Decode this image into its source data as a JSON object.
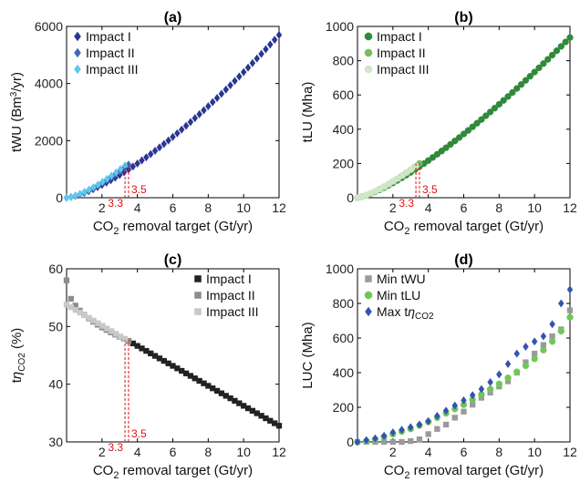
{
  "chart_data": [
    {
      "panel": "(a)",
      "type": "scatter",
      "title": "(a)",
      "xlabel": "CO2 removal target (Gt/yr)",
      "ylabel": "tWU (Bm3/yr)",
      "xlim": [
        0,
        12
      ],
      "ylim": [
        0,
        6000
      ],
      "xticks": [
        "2",
        "4",
        "6",
        "8",
        "10",
        "12"
      ],
      "yticks": [
        "0",
        "2000",
        "4000",
        "6000"
      ],
      "marker": "diamond",
      "legend": "top-left",
      "annotations": [
        {
          "text": "3.3",
          "x": 3.3
        },
        {
          "text": "3.5",
          "x": 3.5
        }
      ],
      "series": [
        {
          "name": "Impact I",
          "color": "#2b3592",
          "x_start": 0.0,
          "x_end": 12.0,
          "y_start": 0,
          "y_end": 5700,
          "exponent": 1.42
        },
        {
          "name": "Impact II",
          "color": "#3e66b6",
          "x_start": 0.0,
          "x_end": 3.5,
          "y_start": 0,
          "y_end": 1160,
          "exponent": 1.45
        },
        {
          "name": "Impact III",
          "color": "#5ec8f0",
          "x_start": 0.0,
          "x_end": 3.3,
          "y_start": 0,
          "y_end": 1130,
          "exponent": 1.45
        }
      ]
    },
    {
      "panel": "(b)",
      "type": "scatter",
      "title": "(b)",
      "xlabel": "CO2 removal target (Gt/yr)",
      "ylabel": "tLU (Mha)",
      "xlim": [
        0,
        12
      ],
      "ylim": [
        0,
        1000
      ],
      "xticks": [
        "2",
        "4",
        "6",
        "8",
        "10",
        "12"
      ],
      "yticks": [
        "0",
        "200",
        "400",
        "600",
        "800",
        "1000"
      ],
      "marker": "circle",
      "legend": "top-left",
      "annotations": [
        {
          "text": "3.3",
          "x": 3.3
        },
        {
          "text": "3.5",
          "x": 3.5
        }
      ],
      "series": [
        {
          "name": "Impact I",
          "color": "#2f8a3a",
          "x_start": 0.0,
          "x_end": 12.0,
          "y_start": 0,
          "y_end": 935,
          "exponent": 1.33
        },
        {
          "name": "Impact II",
          "color": "#74c05c",
          "x_start": 0.0,
          "x_end": 3.5,
          "y_start": 0,
          "y_end": 200,
          "exponent": 1.35
        },
        {
          "name": "Impact III",
          "color": "#cfe6c8",
          "x_start": 0.0,
          "x_end": 3.3,
          "y_start": 0,
          "y_end": 185,
          "exponent": 1.35
        }
      ]
    },
    {
      "panel": "(c)",
      "type": "scatter",
      "title": "(c)",
      "xlabel": "CO2 removal target (Gt/yr)",
      "ylabel": "tηCO2 (%)",
      "xlim": [
        0,
        12
      ],
      "ylim": [
        30,
        60
      ],
      "xticks": [
        "2",
        "4",
        "6",
        "8",
        "10",
        "12"
      ],
      "yticks": [
        "30",
        "40",
        "50",
        "60"
      ],
      "marker": "square",
      "legend": "top-right",
      "annotations": [
        {
          "text": "3.3",
          "x": 3.3
        },
        {
          "text": "3.5",
          "x": 3.5
        }
      ],
      "series": [
        {
          "name": "Impact I",
          "color": "#222222",
          "x_start": 3.5,
          "x_end": 12.0,
          "y_start": 47.5,
          "y_end": 32.8,
          "exponent": 1.0
        },
        {
          "name": "Impact II",
          "color": "#8c8c8c",
          "x_start": 0.0,
          "x_end": 3.5,
          "y_start": 58.0,
          "y_end": 47.5,
          "exponent": 0.45
        },
        {
          "name": "Impact III",
          "color": "#c8c8c8",
          "x_start": 0.0,
          "x_end": 3.3,
          "y_start": 53.8,
          "y_end": 47.8,
          "exponent": 1.0
        }
      ]
    },
    {
      "panel": "(d)",
      "type": "scatter",
      "title": "(d)",
      "xlabel": "CO2 removal target (Gt/yr)",
      "ylabel": "LUC (Mha)",
      "xlim": [
        0,
        12
      ],
      "ylim": [
        0,
        1000
      ],
      "xticks": [
        "2",
        "4",
        "6",
        "8",
        "10",
        "12"
      ],
      "yticks": [
        "0",
        "200",
        "400",
        "600",
        "800",
        "1000"
      ],
      "legend": "top-left",
      "series": [
        {
          "name": "Min tWU",
          "color": "#9a9a9a",
          "marker": "square",
          "points": [
            [
              0,
              0
            ],
            [
              0.5,
              0
            ],
            [
              1,
              0
            ],
            [
              1.5,
              0
            ],
            [
              2,
              0
            ],
            [
              2.5,
              0
            ],
            [
              3,
              5
            ],
            [
              3.5,
              15
            ],
            [
              4,
              45
            ],
            [
              4.5,
              75
            ],
            [
              5,
              100
            ],
            [
              5.5,
              140
            ],
            [
              6,
              175
            ],
            [
              6.5,
              215
            ],
            [
              7,
              255
            ],
            [
              7.5,
              285
            ],
            [
              8,
              320
            ],
            [
              8.5,
              350
            ],
            [
              9,
              400
            ],
            [
              9.5,
              460
            ],
            [
              10,
              510
            ],
            [
              10.5,
              560
            ],
            [
              11,
              610
            ],
            [
              11.5,
              650
            ],
            [
              12,
              760
            ]
          ]
        },
        {
          "name": "Min tLU",
          "color": "#6ec856",
          "marker": "circle",
          "points": [
            [
              0,
              0
            ],
            [
              0.5,
              5
            ],
            [
              1,
              15
            ],
            [
              1.5,
              30
            ],
            [
              2,
              45
            ],
            [
              2.5,
              60
            ],
            [
              3,
              75
            ],
            [
              3.5,
              95
            ],
            [
              4,
              115
            ],
            [
              4.5,
              140
            ],
            [
              5,
              165
            ],
            [
              5.5,
              190
            ],
            [
              6,
              215
            ],
            [
              6.5,
              245
            ],
            [
              7,
              275
            ],
            [
              7.5,
              305
            ],
            [
              8,
              335
            ],
            [
              8.5,
              370
            ],
            [
              9,
              405
            ],
            [
              9.5,
              440
            ],
            [
              10,
              480
            ],
            [
              10.5,
              530
            ],
            [
              11,
              580
            ],
            [
              11.5,
              640
            ],
            [
              12,
              720
            ]
          ]
        },
        {
          "name": "Max tηCO2",
          "color": "#3353b0",
          "marker": "diamond",
          "points": [
            [
              0,
              0
            ],
            [
              0.5,
              10
            ],
            [
              1,
              20
            ],
            [
              1.5,
              35
            ],
            [
              2,
              55
            ],
            [
              2.5,
              70
            ],
            [
              3,
              85
            ],
            [
              3.5,
              100
            ],
            [
              4,
              120
            ],
            [
              4.5,
              150
            ],
            [
              5,
              180
            ],
            [
              5.5,
              210
            ],
            [
              6,
              240
            ],
            [
              6.5,
              270
            ],
            [
              7,
              305
            ],
            [
              7.5,
              345
            ],
            [
              8,
              390
            ],
            [
              8.5,
              450
            ],
            [
              9,
              510
            ],
            [
              9.5,
              550
            ],
            [
              10,
              580
            ],
            [
              10.5,
              610
            ],
            [
              11,
              680
            ],
            [
              11.5,
              800
            ],
            [
              12,
              880
            ]
          ]
        }
      ]
    }
  ]
}
